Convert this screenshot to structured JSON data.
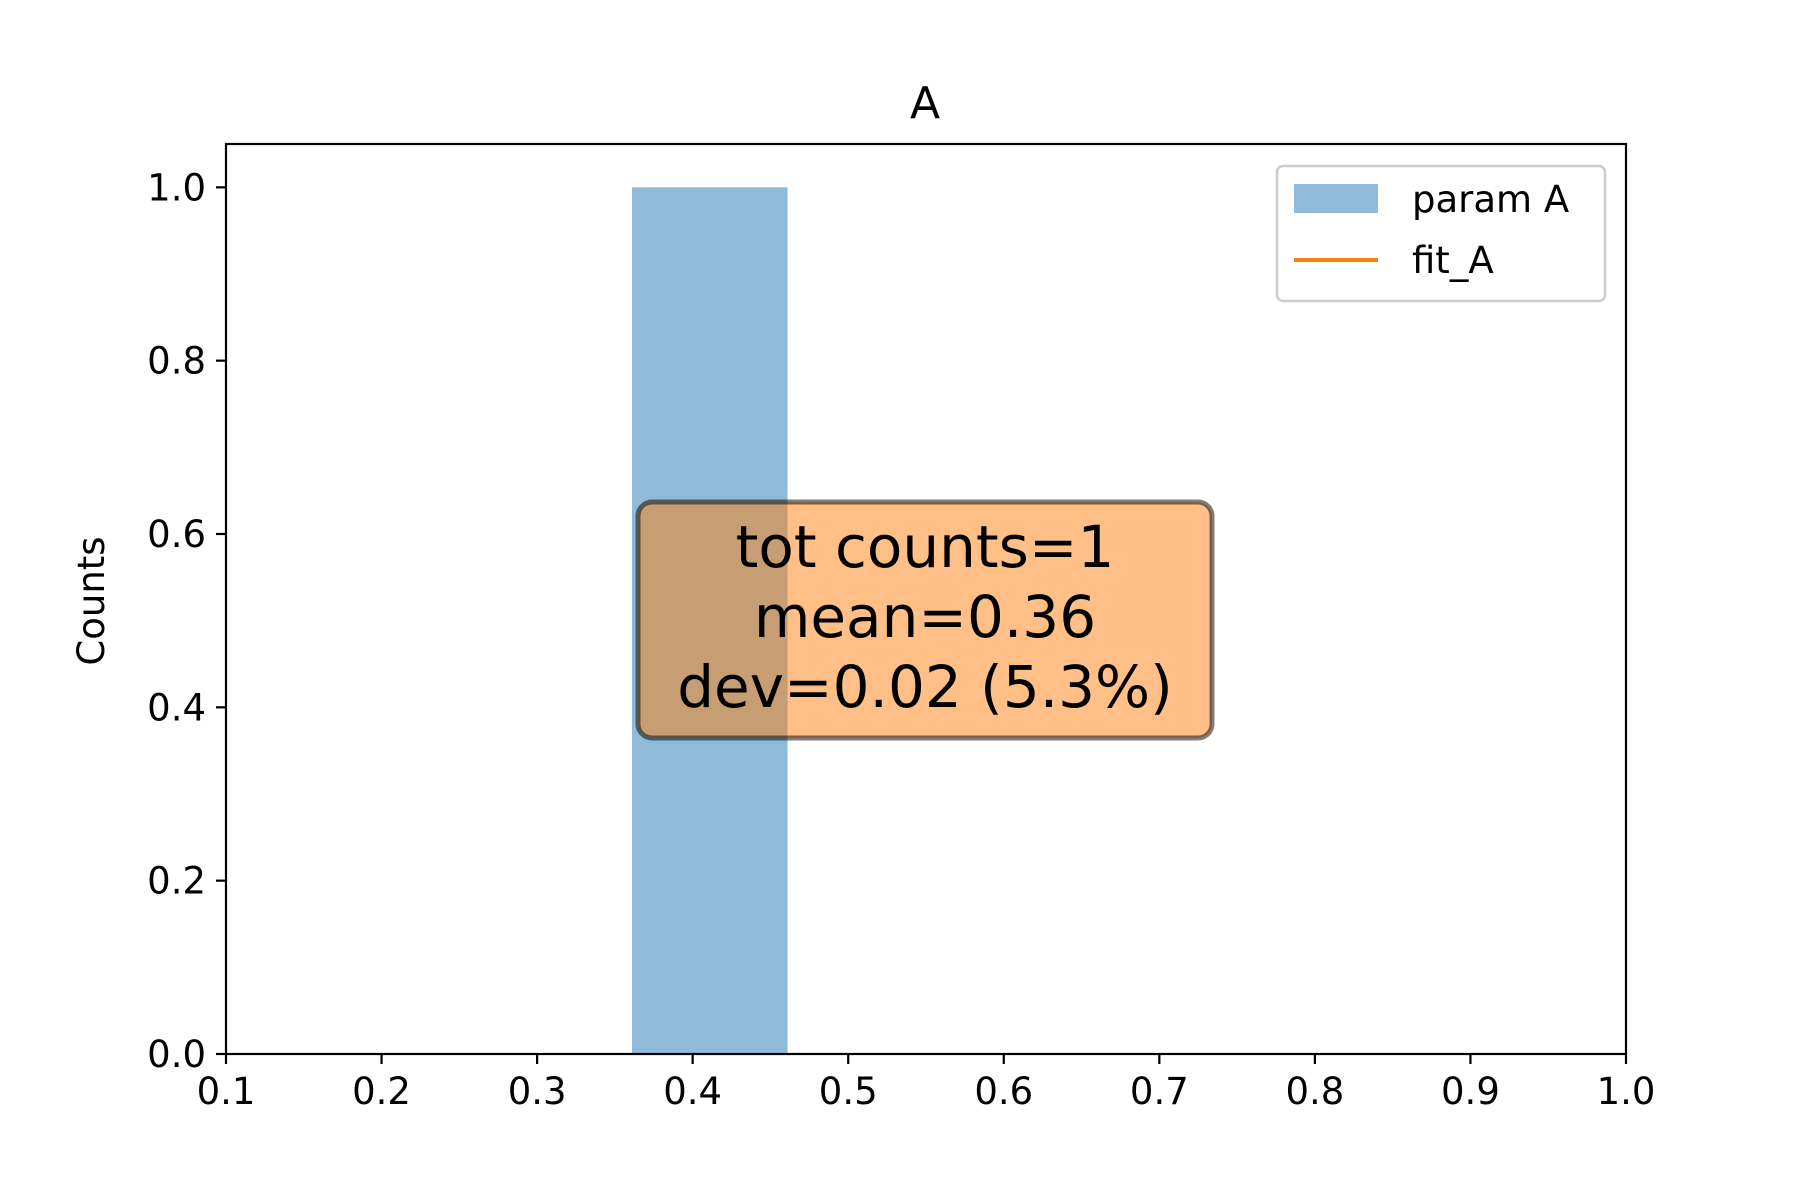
{
  "chart_data": {
    "type": "bar",
    "title": "A",
    "xlabel": "",
    "ylabel": "Counts",
    "xlim": [
      0.1,
      1.0
    ],
    "ylim": [
      0.0,
      1.05
    ],
    "xticks": [
      0.1,
      0.2,
      0.3,
      0.4,
      0.5,
      0.6,
      0.7,
      0.8,
      0.9,
      1.0
    ],
    "xtick_labels": [
      "0.1",
      "0.2",
      "0.3",
      "0.4",
      "0.5",
      "0.6",
      "0.7",
      "0.8",
      "0.9",
      "1.0"
    ],
    "yticks": [
      0.0,
      0.2,
      0.4,
      0.6,
      0.8,
      1.0
    ],
    "ytick_labels": [
      "0.0",
      "0.2",
      "0.4",
      "0.6",
      "0.8",
      "1.0"
    ],
    "grid": false,
    "series": [
      {
        "name": "param A",
        "kind": "histogram",
        "color": "#1f77b4",
        "opacity": 0.5,
        "bins": [
          {
            "x_start": 0.361,
            "x_end": 0.461,
            "count": 1
          }
        ]
      },
      {
        "name": "fit_A",
        "kind": "line",
        "color": "#ff7f0e",
        "points": []
      }
    ],
    "legend": {
      "position": "top-right",
      "entries": [
        {
          "label": "param A",
          "marker": "patch",
          "color": "#1f77b4"
        },
        {
          "label": "fit_A",
          "marker": "line",
          "color": "#ff7f0e"
        }
      ]
    },
    "annotation": {
      "lines": [
        "tot counts=1",
        "mean=0.36",
        "dev=0.02 (5.3%)"
      ],
      "box_color": "#ff7f0e",
      "edge_color": "#000000"
    }
  }
}
